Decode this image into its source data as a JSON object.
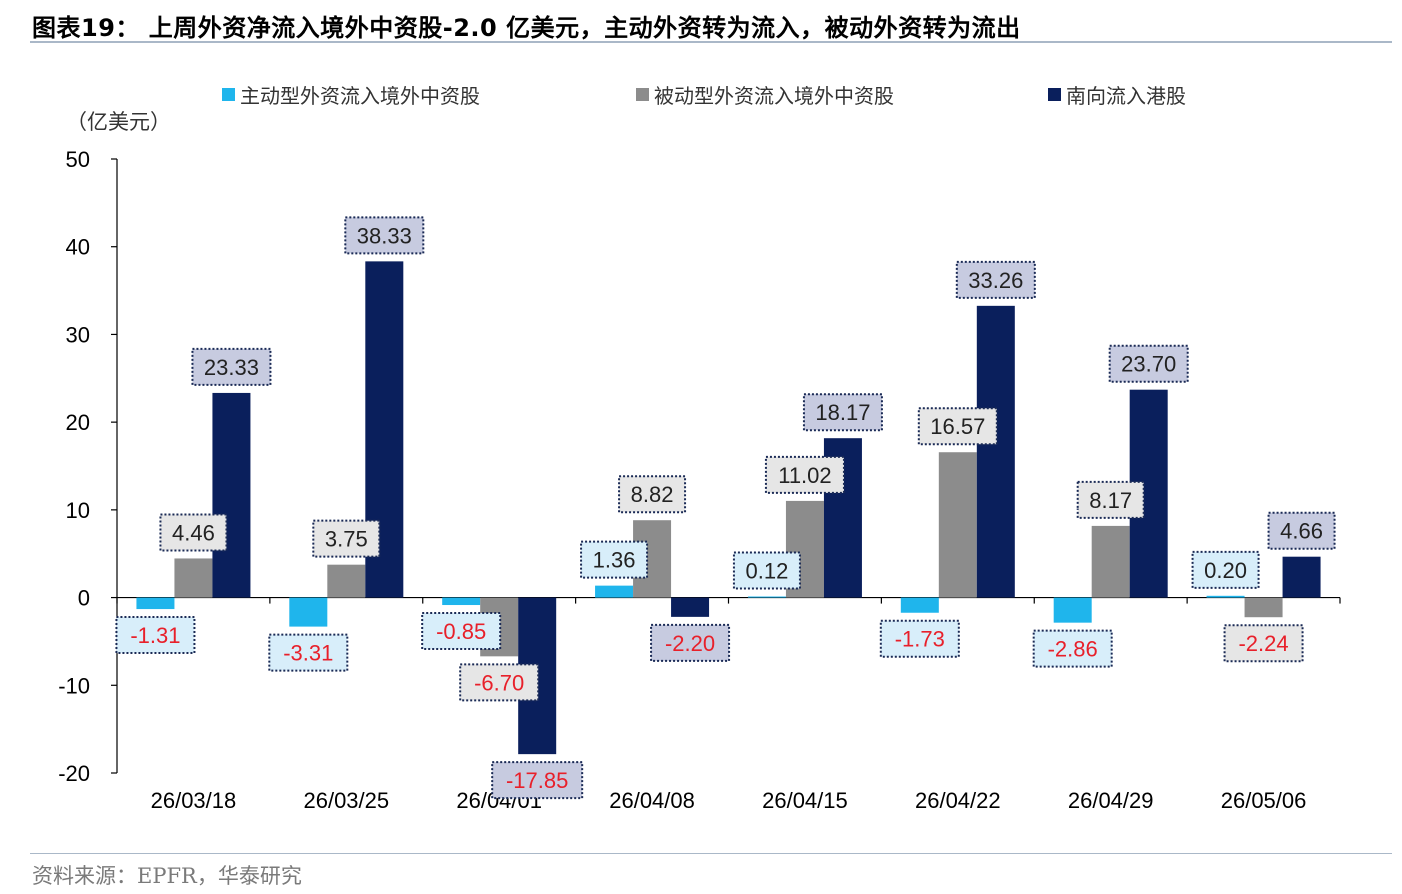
{
  "header": {
    "title": "图表19：  上周外资净流入境外中资股-2.0 亿美元，主动外资转为流入，被动外资转为流出"
  },
  "footer": {
    "source": "资料来源：EPFR，华泰研究"
  },
  "chart_data": {
    "type": "bar",
    "unit_label": "（亿美元）",
    "categories": [
      "26/03/18",
      "26/03/25",
      "26/04/01",
      "26/04/08",
      "26/04/15",
      "26/04/22",
      "26/04/29",
      "26/05/06"
    ],
    "ylim": [
      -20,
      50
    ],
    "yticks": [
      -20,
      -10,
      0,
      10,
      20,
      30,
      40,
      50
    ],
    "grid": false,
    "legend_position": "top",
    "series": [
      {
        "name": "主动型外资流入境外中资股",
        "color": "#1fb5ec",
        "label_bg": "#d8eefa",
        "values": [
          -1.31,
          -3.31,
          -0.85,
          1.36,
          0.12,
          -1.73,
          -2.86,
          0.2
        ]
      },
      {
        "name": "被动型外资流入境外中资股",
        "color": "#8c8c8c",
        "label_bg": "#e6e6e6",
        "values": [
          4.46,
          3.75,
          -6.7,
          8.82,
          11.02,
          16.57,
          8.17,
          -2.24
        ]
      },
      {
        "name": "南向流入港股",
        "color": "#0a1f5c",
        "label_bg": "#c7cbe0",
        "values": [
          23.33,
          38.33,
          -17.85,
          -2.2,
          18.17,
          33.26,
          23.7,
          4.66
        ]
      }
    ],
    "colors": {
      "positive_label": "#222222",
      "negative_label": "#e8202a"
    }
  }
}
